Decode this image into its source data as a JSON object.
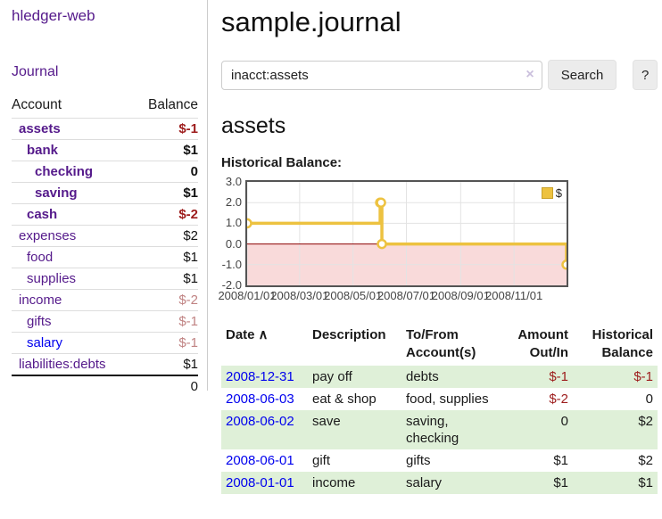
{
  "sidebar": {
    "app_title": "hledger-web",
    "nav": [
      {
        "label": "Journal"
      }
    ],
    "accounts_table": {
      "headers": [
        "Account",
        "Balance"
      ],
      "rows": [
        {
          "name": "assets",
          "indent": 1,
          "bold": true,
          "balance": "$-1",
          "balance_color": "negative-strong"
        },
        {
          "name": "bank",
          "indent": 2,
          "bold": true,
          "balance": "$1",
          "balance_color": "normal"
        },
        {
          "name": "checking",
          "indent": 3,
          "bold": true,
          "balance": "0",
          "balance_color": "normal"
        },
        {
          "name": "saving",
          "indent": 3,
          "bold": true,
          "balance": "$1",
          "balance_color": "normal"
        },
        {
          "name": "cash",
          "indent": 2,
          "bold": true,
          "balance": "$-2",
          "balance_color": "negative-strong"
        },
        {
          "name": "expenses",
          "indent": 1,
          "bold": false,
          "balance": "$2",
          "balance_color": "normal"
        },
        {
          "name": "food",
          "indent": 2,
          "bold": false,
          "balance": "$1",
          "balance_color": "normal"
        },
        {
          "name": "supplies",
          "indent": 2,
          "bold": false,
          "balance": "$1",
          "balance_color": "normal"
        },
        {
          "name": "income",
          "indent": 1,
          "bold": false,
          "balance": "$-2",
          "balance_color": "negative-muted"
        },
        {
          "name": "gifts",
          "indent": 2,
          "bold": false,
          "balance": "$-1",
          "balance_color": "negative-muted"
        },
        {
          "name": "salary",
          "indent": 2,
          "bold": false,
          "balance": "$-1",
          "balance_color": "negative-muted",
          "link_style": "unvisited"
        },
        {
          "name": "liabilities:debts",
          "indent": 1,
          "bold": false,
          "balance": "$1",
          "balance_color": "normal"
        }
      ],
      "total": "0"
    }
  },
  "main": {
    "title": "sample.journal",
    "search": {
      "value": "inacct:assets",
      "clear_icon": "×",
      "button_label": "Search",
      "help_label": "?"
    },
    "account_heading": "assets",
    "chart_label": "Historical Balance:"
  },
  "chart_data": {
    "type": "line",
    "step": true,
    "title": "Historical Balance",
    "series": [
      {
        "name": "$",
        "color": "#edc240",
        "points": [
          {
            "x": "2008-01-01",
            "y": 1
          },
          {
            "x": "2008-06-01",
            "y": 2
          },
          {
            "x": "2008-06-02",
            "y": 2
          },
          {
            "x": "2008-06-03",
            "y": 0
          },
          {
            "x": "2008-12-31",
            "y": -1
          }
        ]
      }
    ],
    "xrange": [
      "2008-01-01",
      "2008-12-31"
    ],
    "ylim": [
      -2,
      3
    ],
    "yticks": [
      {
        "label": "3.0",
        "value": 3
      },
      {
        "label": "2.0",
        "value": 2
      },
      {
        "label": "1.0",
        "value": 1
      },
      {
        "label": "0.0",
        "value": 0
      },
      {
        "label": "-1.0",
        "value": -1
      },
      {
        "label": "-2.0",
        "value": -2
      }
    ],
    "xticks": [
      {
        "label": "2008/01/01",
        "date": "2008-01-01"
      },
      {
        "label": "2008/03/01",
        "date": "2008-03-01"
      },
      {
        "label": "2008/05/01",
        "date": "2008-05-01"
      },
      {
        "label": "2008/07/01",
        "date": "2008-07-01"
      },
      {
        "label": "2008/09/01",
        "date": "2008-09-01"
      },
      {
        "label": "2008/11/01",
        "date": "2008-11-01"
      }
    ],
    "legend_position": "top-right",
    "grid": true,
    "grid_color": "#e3e3e3",
    "border_color": "#545454",
    "zero_line_color": "#8b0000",
    "negative_region_color": "#f9dada"
  },
  "register_table": {
    "sort_indicator": "∧",
    "headers": [
      {
        "label": "Date",
        "align": "left",
        "sort": true
      },
      {
        "label": "Description",
        "align": "left"
      },
      {
        "label": "To/From Account(s)",
        "align": "left"
      },
      {
        "label": "Amount Out/In",
        "align": "right"
      },
      {
        "label": "Historical Balance",
        "align": "right"
      }
    ],
    "rows": [
      {
        "date": "2008-12-31",
        "description": "pay off",
        "accounts": "debts",
        "amount": "$-1",
        "amount_negative": true,
        "balance": "$-1",
        "balance_negative": true
      },
      {
        "date": "2008-06-03",
        "description": "eat & shop",
        "accounts": "food, supplies",
        "amount": "$-2",
        "amount_negative": true,
        "balance": "0",
        "balance_negative": false
      },
      {
        "date": "2008-06-02",
        "description": "save",
        "accounts": "saving, checking",
        "amount": "0",
        "amount_negative": false,
        "balance": "$2",
        "balance_negative": false
      },
      {
        "date": "2008-06-01",
        "description": "gift",
        "accounts": "gifts",
        "amount": "$1",
        "amount_negative": false,
        "balance": "$2",
        "balance_negative": false
      },
      {
        "date": "2008-01-01",
        "description": "income",
        "accounts": "salary",
        "amount": "$1",
        "amount_negative": false,
        "balance": "$1",
        "balance_negative": false
      }
    ]
  }
}
